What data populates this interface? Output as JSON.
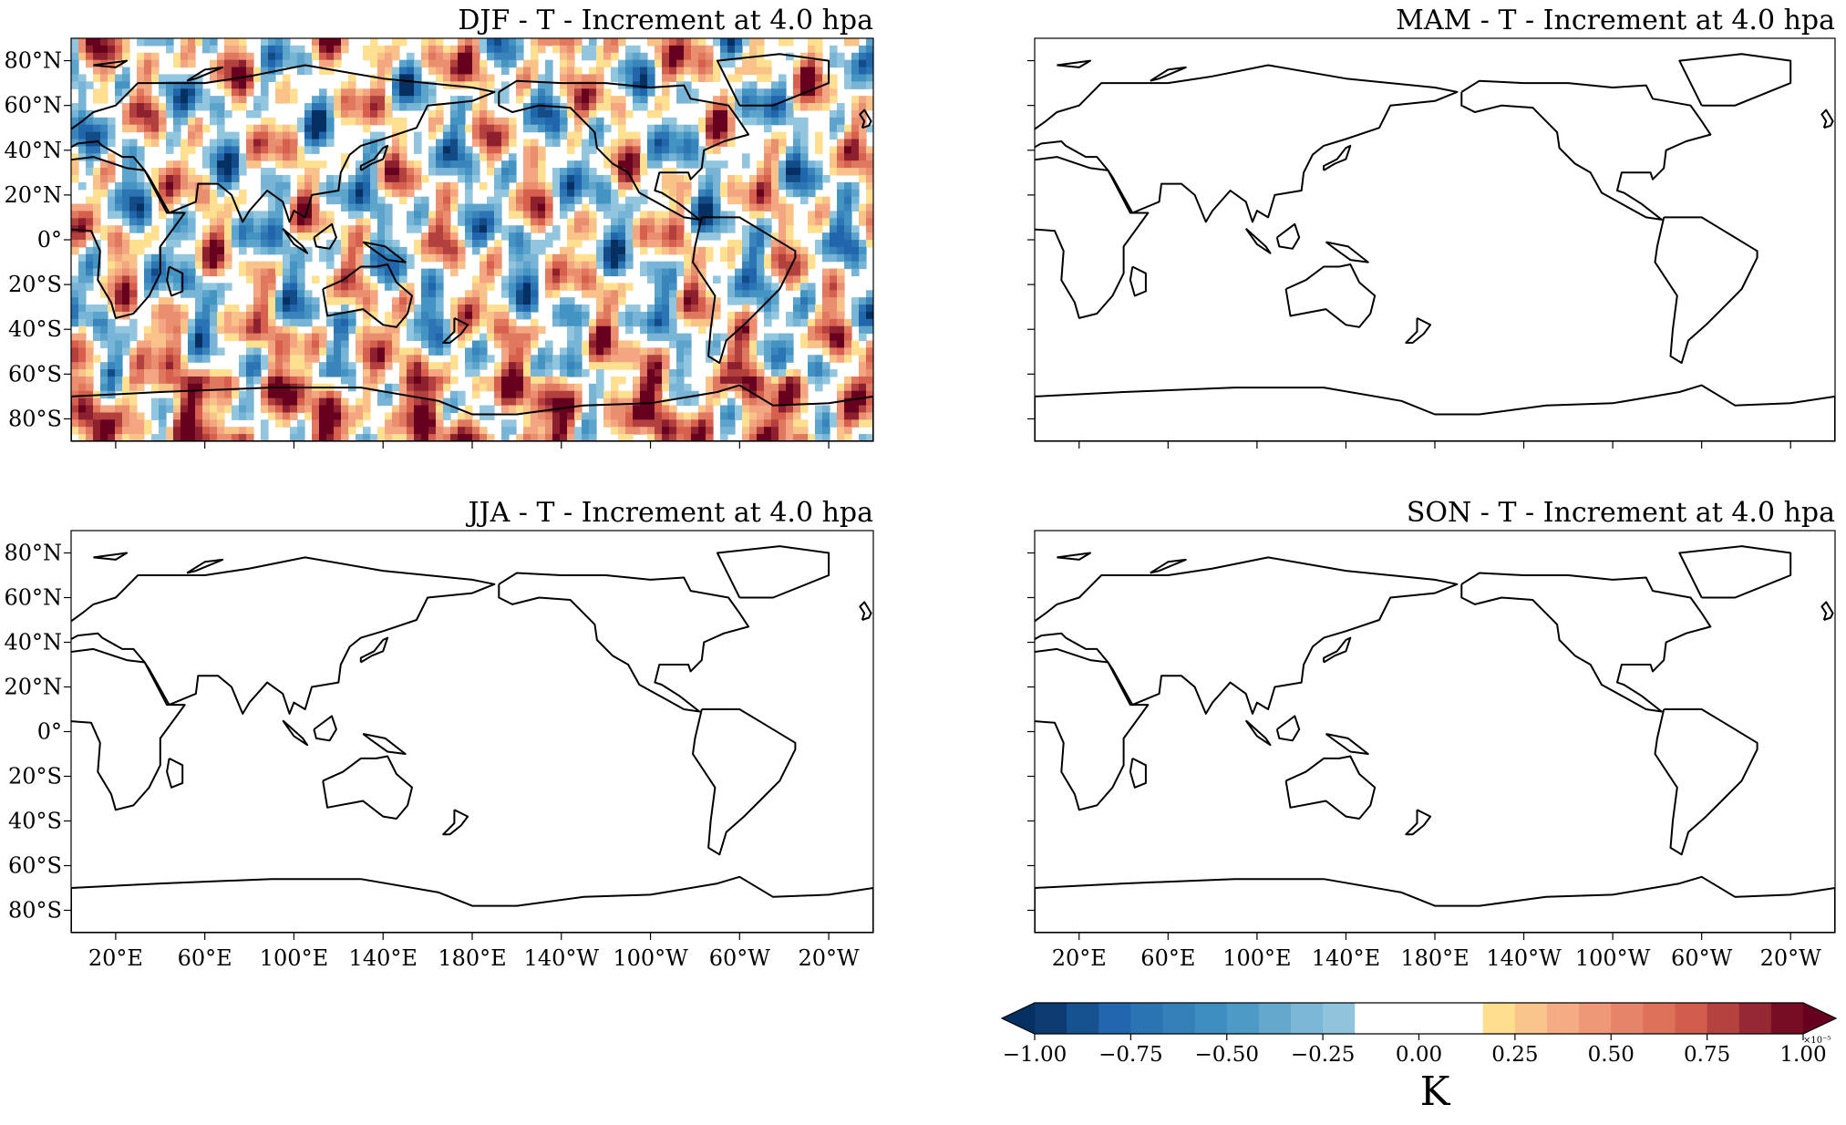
{
  "figure": {
    "panels": [
      {
        "id": "djf",
        "title": "DJF - T - Increment at 4.0 hpa",
        "field": "filled"
      },
      {
        "id": "mam",
        "title": "MAM - T - Increment at 4.0 hpa",
        "field": "empty"
      },
      {
        "id": "jja",
        "title": "JJA - T - Increment at 4.0 hpa",
        "field": "empty"
      },
      {
        "id": "son",
        "title": "SON - T - Increment at 4.0 hpa",
        "field": "empty"
      }
    ],
    "lat_tick_labels": [
      "80°N",
      "60°N",
      "40°N",
      "20°N",
      "0°",
      "20°S",
      "40°S",
      "60°S",
      "80°S"
    ],
    "lon_tick_labels": [
      "20°E",
      "60°E",
      "100°E",
      "140°E",
      "180°E",
      "140°W",
      "100°W",
      "60°W",
      "20°W"
    ],
    "colorbar": {
      "unit": "K",
      "exponent_label": "×10⁻⁵",
      "tick_labels": [
        "−1.00",
        "−0.75",
        "−0.50",
        "−0.25",
        "0.00",
        "0.25",
        "0.50",
        "0.75",
        "1.00"
      ],
      "range": [
        -1.0,
        1.0
      ],
      "extend": "both",
      "colormap": "RdBu_r"
    }
  },
  "chart_data": {
    "type": "heatmap",
    "projection": "PlateCarree, central longitude 180°E",
    "variable": "T - Increment at 4.0 hpa",
    "unit": "K",
    "scale": "1e-5",
    "colorbar_range": [
      -1.0,
      1.0
    ],
    "seasons": [
      "DJF",
      "MAM",
      "JJA",
      "SON"
    ],
    "season_has_field": [
      true,
      false,
      false,
      false
    ],
    "lat_range": [
      -90,
      90
    ],
    "lon_range": [
      0,
      360
    ],
    "colors": {
      "neg_max": "#053061",
      "neutral": "#ffffff",
      "pos_max": "#67001f"
    }
  }
}
